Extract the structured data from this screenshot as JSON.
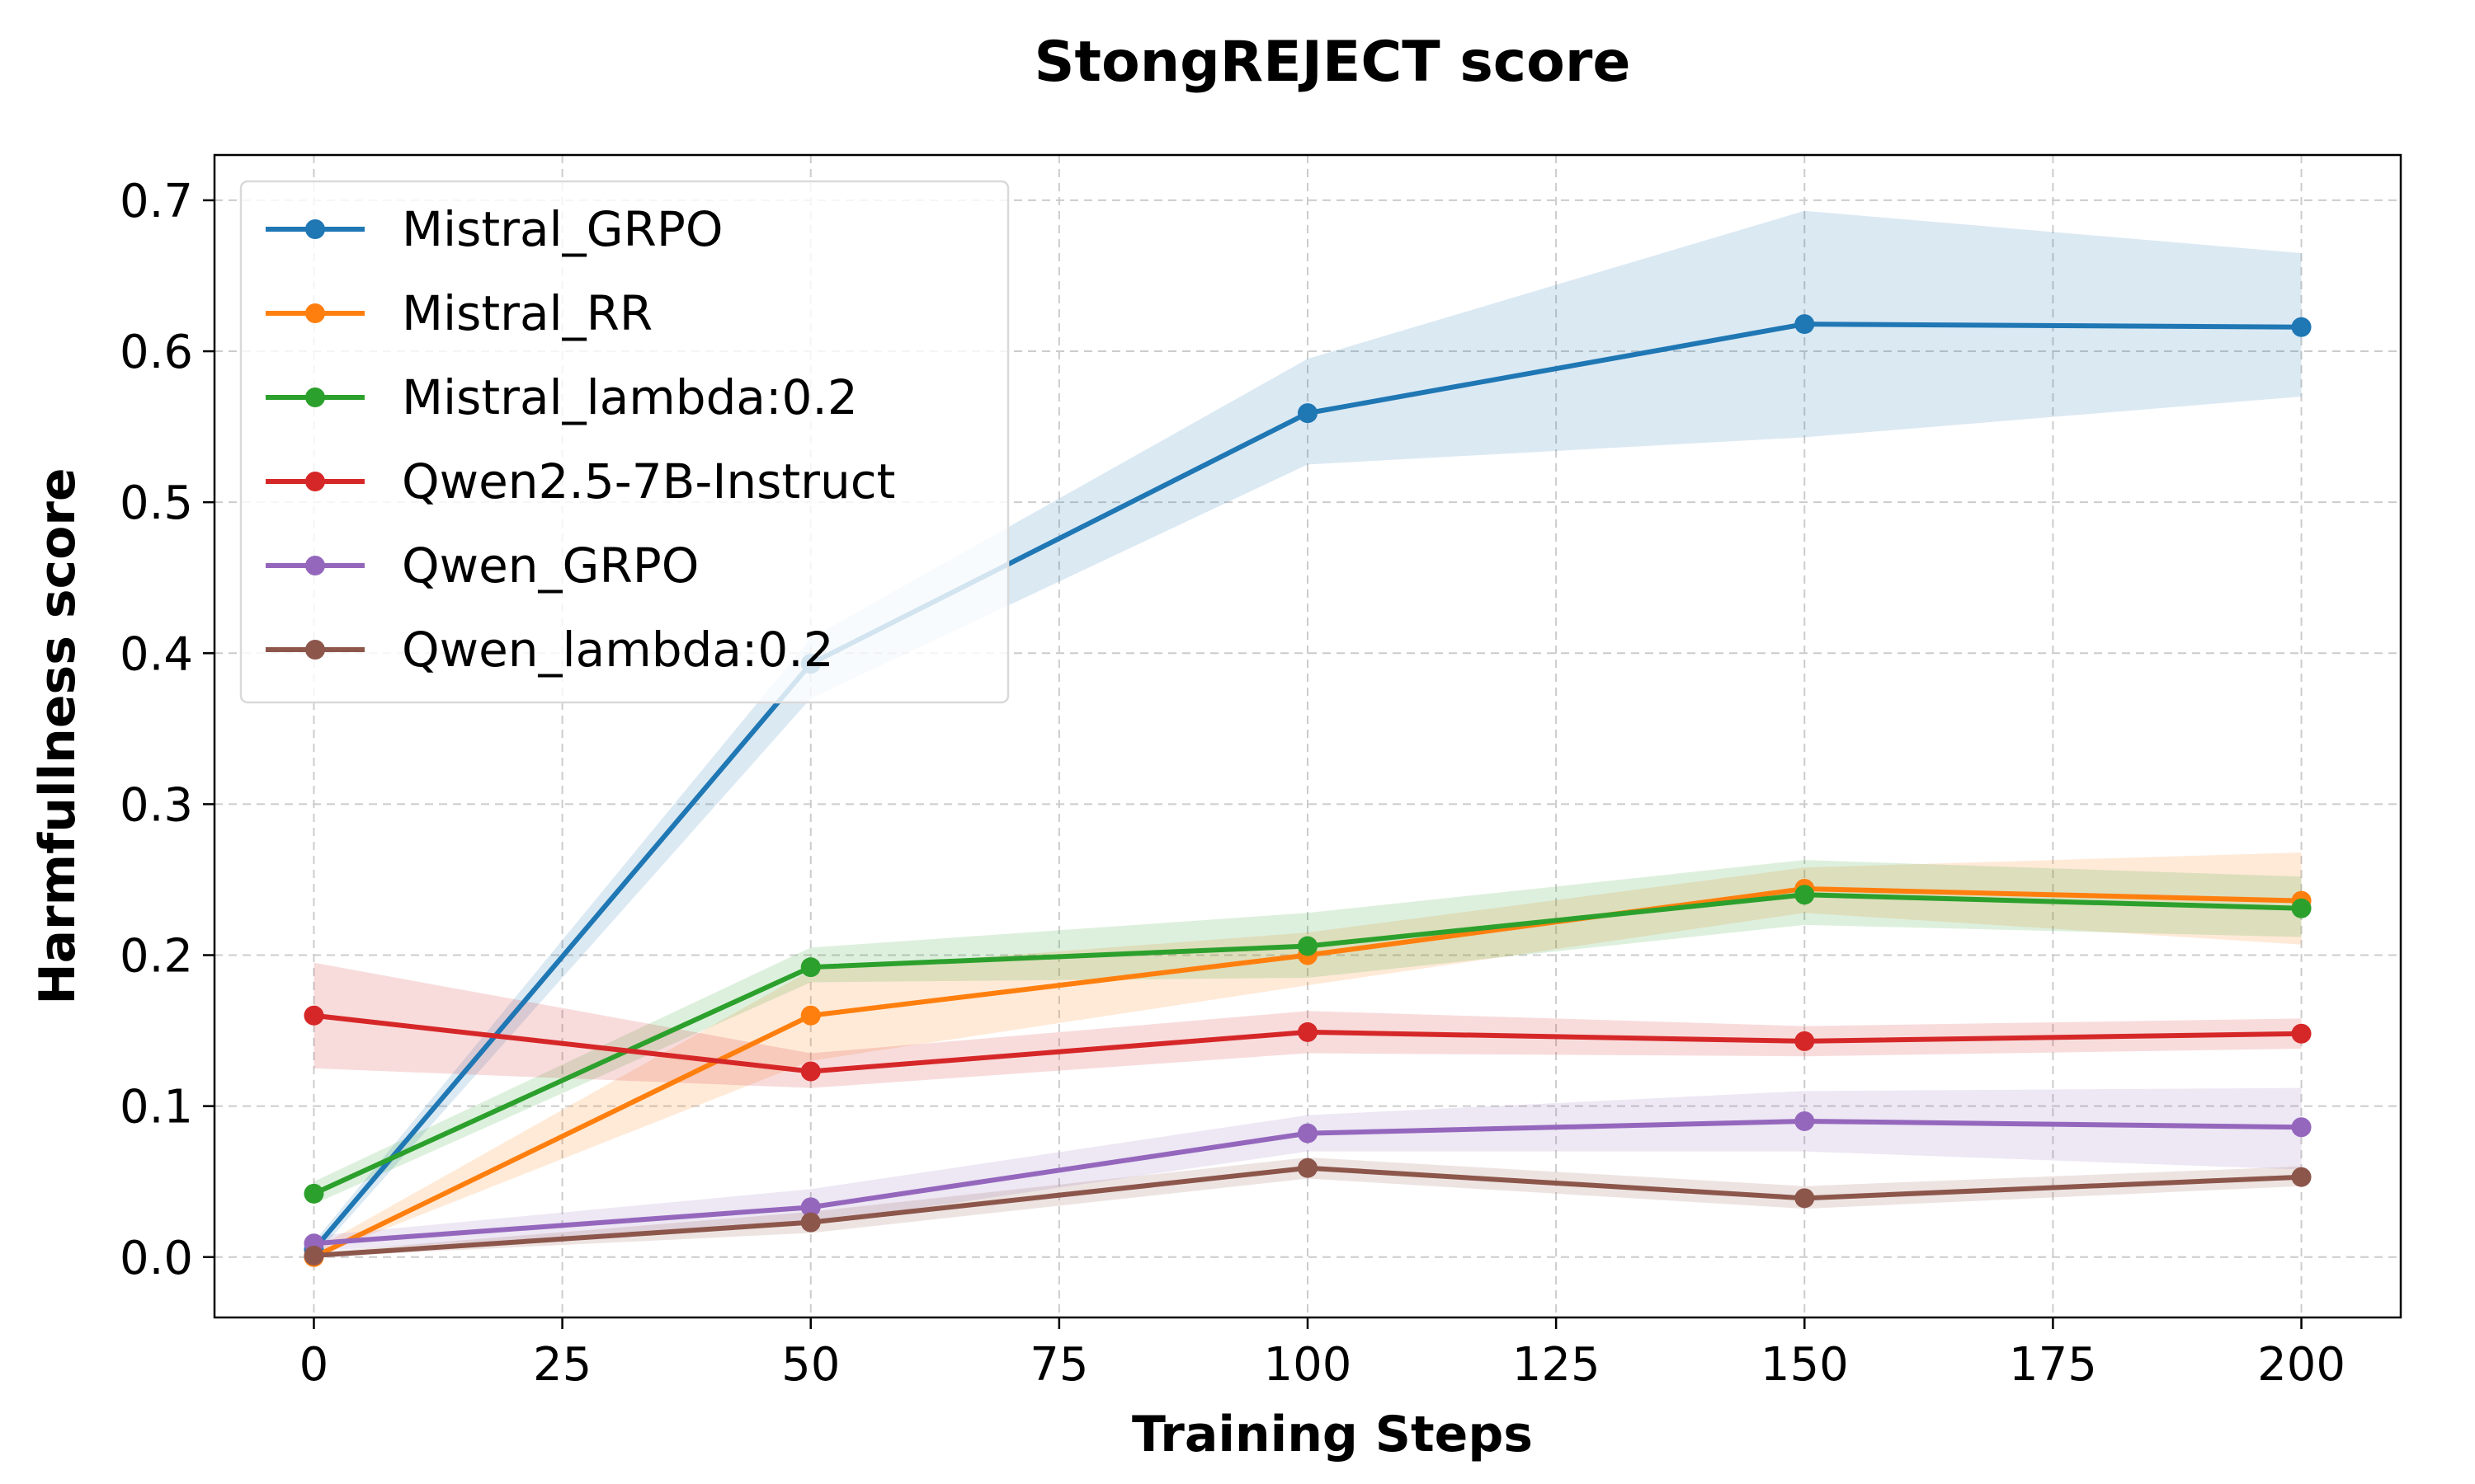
{
  "chart_data": {
    "type": "line",
    "title": "StongREJECT score",
    "xlabel": "Training Steps",
    "ylabel": "Harmfullness score",
    "x": [
      0,
      50,
      100,
      150,
      200
    ],
    "xlim": [
      -10,
      210
    ],
    "ylim": [
      -0.04,
      0.73
    ],
    "xticks": [
      0,
      25,
      50,
      75,
      100,
      125,
      150,
      175,
      200
    ],
    "xtick_labels": [
      "0",
      "25",
      "50",
      "75",
      "100",
      "125",
      "150",
      "175",
      "200"
    ],
    "yticks": [
      0.0,
      0.1,
      0.2,
      0.3,
      0.4,
      0.5,
      0.6,
      0.7
    ],
    "ytick_labels": [
      "0.0",
      "0.1",
      "0.2",
      "0.3",
      "0.4",
      "0.5",
      "0.6",
      "0.7"
    ],
    "grid": true,
    "legend_position": "top-left",
    "series": [
      {
        "name": "Mistral_GRPO",
        "color": "#1f77b4",
        "values": [
          0.005,
          0.393,
          0.559,
          0.618,
          0.616
        ],
        "lower": [
          0.0,
          0.37,
          0.525,
          0.543,
          0.57
        ],
        "upper": [
          0.01,
          0.41,
          0.595,
          0.693,
          0.665
        ]
      },
      {
        "name": "Mistral_RR",
        "color": "#ff7f0e",
        "values": [
          0.0,
          0.16,
          0.2,
          0.244,
          0.236
        ],
        "lower": [
          0.0,
          0.13,
          0.18,
          0.228,
          0.207
        ],
        "upper": [
          0.005,
          0.19,
          0.215,
          0.258,
          0.268
        ]
      },
      {
        "name": "Mistral_lambda:0.2",
        "color": "#2ca02c",
        "values": [
          0.042,
          0.192,
          0.206,
          0.24,
          0.231
        ],
        "lower": [
          0.035,
          0.182,
          0.185,
          0.22,
          0.212
        ],
        "upper": [
          0.05,
          0.205,
          0.228,
          0.263,
          0.252
        ]
      },
      {
        "name": "Qwen2.5-7B-Instruct",
        "color": "#d62728",
        "values": [
          0.16,
          0.123,
          0.149,
          0.143,
          0.148
        ],
        "lower": [
          0.125,
          0.112,
          0.135,
          0.133,
          0.138
        ],
        "upper": [
          0.195,
          0.135,
          0.163,
          0.153,
          0.158
        ]
      },
      {
        "name": "Qwen_GRPO",
        "color": "#9467bd",
        "values": [
          0.009,
          0.033,
          0.082,
          0.09,
          0.086
        ],
        "lower": [
          0.004,
          0.022,
          0.07,
          0.07,
          0.058
        ],
        "upper": [
          0.014,
          0.045,
          0.094,
          0.11,
          0.112
        ]
      },
      {
        "name": "Qwen_lambda:0.2",
        "color": "#8c564b",
        "values": [
          0.001,
          0.023,
          0.059,
          0.039,
          0.053
        ],
        "lower": [
          0.0,
          0.016,
          0.052,
          0.032,
          0.047
        ],
        "upper": [
          0.003,
          0.03,
          0.066,
          0.047,
          0.06
        ]
      }
    ]
  }
}
